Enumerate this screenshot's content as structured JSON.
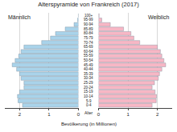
{
  "chart_data": {
    "type": "bar",
    "orientation": "horizontal",
    "title": "Alterspyramide von Frankreich (2017)",
    "xlabel": "Bevölkerung (in Millionen)",
    "ylabel": "Alter",
    "categories": [
      "0-4",
      "5-9",
      "10-14",
      "15-19",
      "20-24",
      "25-29",
      "30-34",
      "35-39",
      "40-44",
      "45-49",
      "50-54",
      "55-59",
      "60-64",
      "65-69",
      "70-74",
      "75-79",
      "80-84",
      "85-89",
      "90-94",
      "95-99",
      "100+"
    ],
    "series": [
      {
        "name": "Männlich",
        "color": "#a9d3ea",
        "values": [
          1.9,
          2.05,
          2.07,
          2.0,
          1.85,
          1.85,
          1.95,
          2.0,
          2.1,
          2.25,
          2.15,
          2.03,
          1.95,
          1.85,
          1.25,
          0.95,
          0.78,
          0.45,
          0.15,
          0.03,
          0.003
        ]
      },
      {
        "name": "Weiblich",
        "color": "#f7b7c5",
        "values": [
          1.82,
          1.96,
          1.97,
          1.92,
          1.82,
          1.9,
          2.03,
          2.07,
          2.15,
          2.28,
          2.22,
          2.15,
          2.1,
          2.0,
          1.4,
          1.2,
          1.1,
          0.85,
          0.4,
          0.11,
          0.02
        ]
      }
    ],
    "xlim": [
      0,
      2.5
    ],
    "xticks": [
      0,
      1,
      2
    ],
    "grid": true
  }
}
